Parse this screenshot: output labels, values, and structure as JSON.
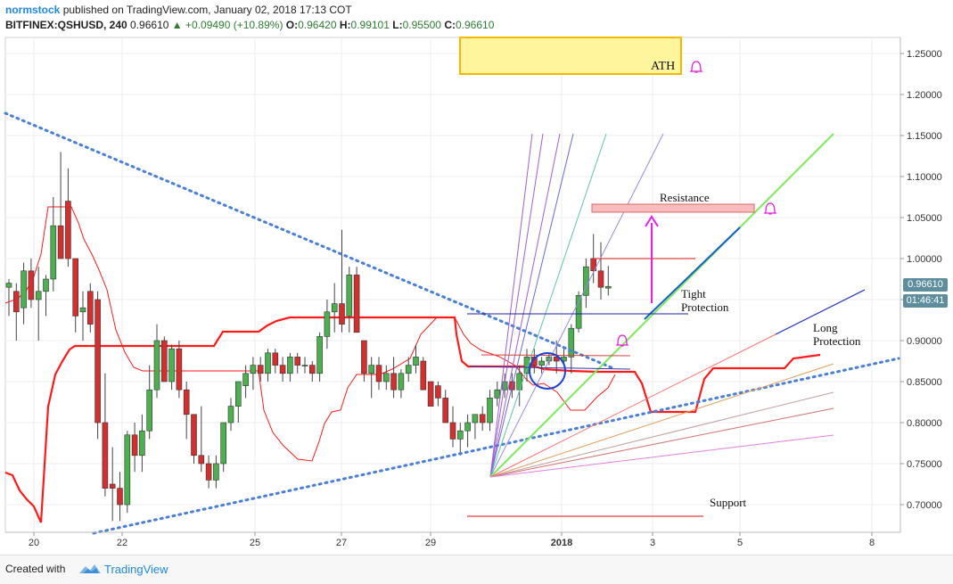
{
  "header": {
    "author": "normstock",
    "published": "published on TradingView.com, January 02, 2018 17:13 COT",
    "symbol": "BITFINEX:QSHUSD, 240",
    "last": "0.96610",
    "change": "+0.09490 (+10.89%)",
    "o_label": "O:",
    "o": "0.96420",
    "h_label": "H:",
    "h": "0.99101",
    "l_label": "L:",
    "l": "0.95500",
    "c_label": "C:",
    "c": "0.96610"
  },
  "footer": {
    "created": "Created with",
    "brand": "TradingView"
  },
  "price_tags": {
    "last": "0.96610",
    "countdown": "01:46:41"
  },
  "colors": {
    "up": "#4caf50",
    "down": "#d32f2f",
    "trend": "#4a7fd8",
    "green_line": "#7ee85f",
    "red_line": "#ff1a1a",
    "magenta": "#e91ee4",
    "ath_fill": "#fff59d",
    "ath_border": "#f5b700",
    "resistance_fill": "#f8bcbc"
  },
  "chart_data": {
    "type": "candlestick",
    "x_axis_labels": [
      "20",
      "22",
      "25",
      "27",
      "29",
      "2018",
      "3",
      "5",
      "8"
    ],
    "y_axis_labels": [
      "1.25000",
      "1.20000",
      "1.15000",
      "1.10000",
      "1.05000",
      "1.00000",
      "0.95000",
      "0.90000",
      "0.85000",
      "0.80000",
      "0.75000",
      "0.70000"
    ],
    "ylim": [
      0.66,
      1.27
    ],
    "annotations": {
      "ath": "ATH",
      "resistance": "Resistance",
      "tight": "Tight\nProtection",
      "long": "Long\nProtection",
      "support": "Support"
    },
    "candles": [
      [
        0.965,
        0.975,
        0.93,
        0.97
      ],
      [
        0.96,
        0.97,
        0.9,
        0.935
      ],
      [
        0.94,
        0.995,
        0.92,
        0.985
      ],
      [
        0.985,
        1.0,
        0.94,
        0.95
      ],
      [
        0.95,
        0.99,
        0.9,
        0.96
      ],
      [
        0.96,
        0.98,
        0.93,
        0.975
      ],
      [
        0.975,
        1.075,
        0.96,
        1.04
      ],
      [
        1.04,
        1.13,
        1.0,
        1.0
      ],
      [
        1.07,
        1.11,
        0.99,
        1.0
      ],
      [
        1.0,
        1.0,
        0.91,
        0.93
      ],
      [
        0.935,
        0.96,
        0.9,
        0.94
      ],
      [
        0.96,
        0.97,
        0.91,
        0.92
      ],
      [
        0.95,
        0.96,
        0.78,
        0.8
      ],
      [
        0.8,
        0.86,
        0.71,
        0.72
      ],
      [
        0.725,
        0.77,
        0.68,
        0.72
      ],
      [
        0.72,
        0.74,
        0.68,
        0.7
      ],
      [
        0.7,
        0.79,
        0.69,
        0.785
      ],
      [
        0.785,
        0.8,
        0.74,
        0.76
      ],
      [
        0.76,
        0.81,
        0.74,
        0.79
      ],
      [
        0.79,
        0.87,
        0.78,
        0.84
      ],
      [
        0.84,
        0.92,
        0.83,
        0.9
      ],
      [
        0.9,
        0.905,
        0.85,
        0.85
      ],
      [
        0.85,
        0.895,
        0.84,
        0.89
      ],
      [
        0.89,
        0.9,
        0.83,
        0.84
      ],
      [
        0.84,
        0.85,
        0.78,
        0.81
      ],
      [
        0.81,
        0.81,
        0.75,
        0.76
      ],
      [
        0.76,
        0.82,
        0.74,
        0.75
      ],
      [
        0.75,
        0.76,
        0.72,
        0.73
      ],
      [
        0.73,
        0.76,
        0.72,
        0.75
      ],
      [
        0.75,
        0.8,
        0.74,
        0.8
      ],
      [
        0.8,
        0.83,
        0.79,
        0.82
      ],
      [
        0.82,
        0.85,
        0.8,
        0.85
      ],
      [
        0.845,
        0.87,
        0.83,
        0.86
      ],
      [
        0.86,
        0.88,
        0.84,
        0.87
      ],
      [
        0.87,
        0.88,
        0.85,
        0.86
      ],
      [
        0.86,
        0.89,
        0.85,
        0.885
      ],
      [
        0.885,
        0.89,
        0.86,
        0.87
      ],
      [
        0.87,
        0.88,
        0.85,
        0.86
      ],
      [
        0.86,
        0.885,
        0.85,
        0.88
      ],
      [
        0.88,
        0.885,
        0.86,
        0.87
      ],
      [
        0.87,
        0.88,
        0.86,
        0.87
      ],
      [
        0.87,
        0.875,
        0.85,
        0.86
      ],
      [
        0.86,
        0.91,
        0.85,
        0.905
      ],
      [
        0.905,
        0.95,
        0.89,
        0.935
      ],
      [
        0.935,
        0.97,
        0.91,
        0.945
      ],
      [
        0.945,
        1.035,
        0.91,
        0.92
      ],
      [
        0.93,
        0.99,
        0.91,
        0.98
      ],
      [
        0.98,
        0.99,
        0.91,
        0.91
      ],
      [
        0.9,
        0.9,
        0.85,
        0.86
      ],
      [
        0.86,
        0.88,
        0.83,
        0.87
      ],
      [
        0.87,
        0.88,
        0.84,
        0.85
      ],
      [
        0.85,
        0.87,
        0.84,
        0.86
      ],
      [
        0.86,
        0.88,
        0.83,
        0.84
      ],
      [
        0.84,
        0.865,
        0.83,
        0.86
      ],
      [
        0.86,
        0.88,
        0.85,
        0.87
      ],
      [
        0.87,
        0.895,
        0.86,
        0.88
      ],
      [
        0.875,
        0.88,
        0.84,
        0.84
      ],
      [
        0.85,
        0.85,
        0.82,
        0.82
      ],
      [
        0.845,
        0.85,
        0.82,
        0.83
      ],
      [
        0.83,
        0.84,
        0.8,
        0.8
      ],
      [
        0.8,
        0.82,
        0.77,
        0.78
      ],
      [
        0.78,
        0.8,
        0.76,
        0.79
      ],
      [
        0.79,
        0.81,
        0.77,
        0.8
      ],
      [
        0.8,
        0.81,
        0.78,
        0.81
      ],
      [
        0.81,
        0.82,
        0.79,
        0.8
      ],
      [
        0.8,
        0.84,
        0.79,
        0.83
      ],
      [
        0.83,
        0.85,
        0.82,
        0.84
      ],
      [
        0.84,
        0.86,
        0.83,
        0.85
      ],
      [
        0.85,
        0.86,
        0.83,
        0.84
      ],
      [
        0.84,
        0.87,
        0.82,
        0.86
      ],
      [
        0.86,
        0.89,
        0.85,
        0.88
      ],
      [
        0.88,
        0.89,
        0.86,
        0.87
      ],
      [
        0.87,
        0.88,
        0.86,
        0.875
      ],
      [
        0.875,
        0.885,
        0.87,
        0.88
      ],
      [
        0.88,
        0.9,
        0.86,
        0.875
      ],
      [
        0.875,
        0.89,
        0.87,
        0.88
      ],
      [
        0.88,
        0.92,
        0.86,
        0.915
      ],
      [
        0.915,
        0.96,
        0.91,
        0.955
      ],
      [
        0.955,
        1.0,
        0.94,
        0.99
      ],
      [
        1.0,
        1.03,
        0.97,
        0.985
      ],
      [
        0.985,
        1.02,
        0.95,
        0.965
      ],
      [
        0.964,
        0.991,
        0.955,
        0.966
      ]
    ]
  }
}
